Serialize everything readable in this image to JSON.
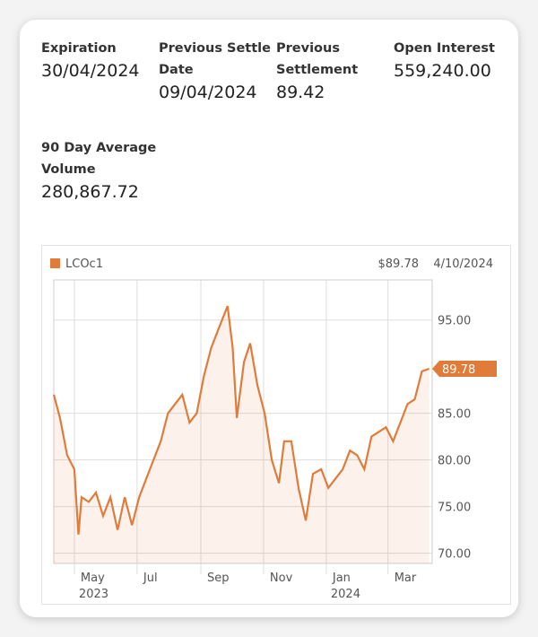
{
  "stats": [
    {
      "label": "Expiration",
      "value": "30/04/2024"
    },
    {
      "label": "Previous Settle Date",
      "value": "09/04/2024"
    },
    {
      "label": "Previous Settlement",
      "value": "89.42"
    },
    {
      "label": "Open Interest",
      "value": "559,240.00"
    },
    {
      "label": "90 Day Average Volume",
      "value": "280,867.72"
    }
  ],
  "chart_data": {
    "type": "area",
    "header_price": "$89.78",
    "header_date": "4/10/2024",
    "last_value_label": "89.78",
    "series": [
      {
        "name": "LCOc1",
        "color": "#e07b39",
        "x": [
          "2023-04-11",
          "2023-04-17",
          "2023-04-24",
          "2023-05-01",
          "2023-05-05",
          "2023-05-08",
          "2023-05-15",
          "2023-05-22",
          "2023-05-29",
          "2023-06-05",
          "2023-06-12",
          "2023-06-19",
          "2023-06-26",
          "2023-07-03",
          "2023-07-10",
          "2023-07-17",
          "2023-07-24",
          "2023-07-31",
          "2023-08-07",
          "2023-08-14",
          "2023-08-21",
          "2023-08-28",
          "2023-09-04",
          "2023-09-11",
          "2023-09-18",
          "2023-09-27",
          "2023-10-02",
          "2023-10-06",
          "2023-10-13",
          "2023-10-19",
          "2023-10-26",
          "2023-11-02",
          "2023-11-09",
          "2023-11-16",
          "2023-11-21",
          "2023-11-28",
          "2023-12-05",
          "2023-12-12",
          "2023-12-19",
          "2023-12-27",
          "2024-01-03",
          "2024-01-10",
          "2024-01-17",
          "2024-01-24",
          "2024-01-31",
          "2024-02-07",
          "2024-02-14",
          "2024-02-21",
          "2024-02-28",
          "2024-03-06",
          "2024-03-13",
          "2024-03-20",
          "2024-03-27",
          "2024-04-03",
          "2024-04-10"
        ],
        "values": [
          87,
          84.5,
          80.5,
          79,
          72,
          76,
          75.5,
          76.5,
          74,
          76,
          72.5,
          76,
          73,
          76,
          78,
          80,
          82,
          85,
          86,
          87,
          84,
          85,
          89,
          92,
          94,
          96.5,
          92,
          84.5,
          90.5,
          92.5,
          88,
          85,
          80,
          77.5,
          82,
          82,
          77,
          73.5,
          78.5,
          79,
          77,
          78,
          79,
          81,
          80.5,
          79,
          82.5,
          83,
          83.5,
          82,
          84,
          86,
          86.5,
          89.5,
          89.78
        ]
      }
    ],
    "xlim": [
      "2023-04-11",
      "2024-04-13"
    ],
    "xticks": [
      {
        "value": "2023-05-01",
        "label": "May"
      },
      {
        "value": "2023-07-01",
        "label": "Jul"
      },
      {
        "value": "2023-09-01",
        "label": "Sep"
      },
      {
        "value": "2023-11-01",
        "label": "Nov"
      },
      {
        "value": "2024-01-01",
        "label": "Jan"
      },
      {
        "value": "2024-03-01",
        "label": "Mar"
      }
    ],
    "x_year_labels": [
      {
        "value": "2023-05-01",
        "label": "2023"
      },
      {
        "value": "2024-01-01",
        "label": "2024"
      }
    ],
    "ylim": [
      68.9,
      99.3
    ],
    "yticks": [
      {
        "value": 70,
        "label": "70.00"
      },
      {
        "value": 75,
        "label": "75.00"
      },
      {
        "value": 80,
        "label": "80.00"
      },
      {
        "value": 85,
        "label": "85.00"
      },
      {
        "value": 95,
        "label": "95.00"
      }
    ],
    "grid": true
  }
}
